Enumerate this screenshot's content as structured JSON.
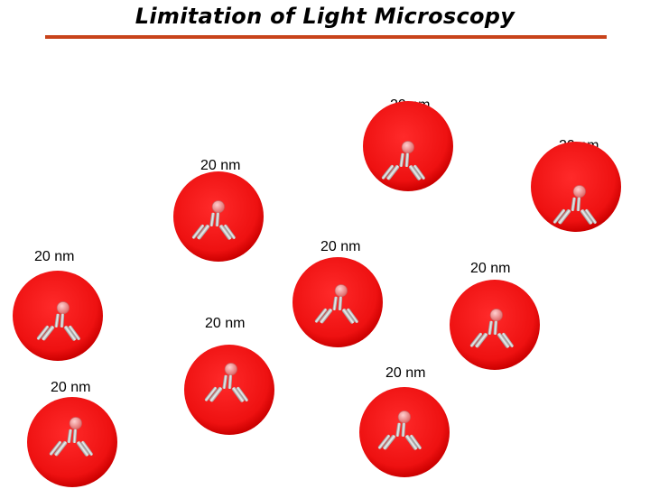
{
  "slide": {
    "title": "Limitation of Light Microscopy",
    "accent_color": "#c8431a"
  },
  "particles": [
    {
      "label": "20 nm",
      "icon": "antibody-icon"
    },
    {
      "label": "20 nm",
      "icon": "antibody-icon"
    },
    {
      "label": "20 nm",
      "icon": "antibody-icon"
    },
    {
      "label": "20 nm",
      "icon": "antibody-icon"
    },
    {
      "label": "20 nm",
      "icon": "antibody-icon"
    },
    {
      "label": "20 nm",
      "icon": "antibody-icon"
    },
    {
      "label": "20 nm",
      "icon": "antibody-icon"
    },
    {
      "label": "20 nm",
      "icon": "antibody-icon"
    },
    {
      "label": "20 nm",
      "icon": "antibody-icon"
    }
  ],
  "colors": {
    "particle_fill": "#ee1111",
    "particle_edge": "#c80000",
    "antibody": "#bdbdbd",
    "antigen": "#f08a8a"
  }
}
